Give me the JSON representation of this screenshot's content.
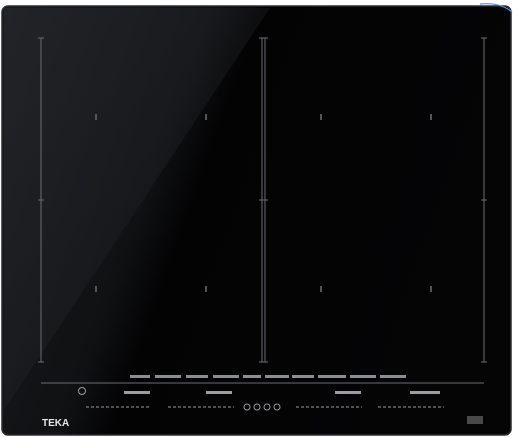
{
  "brand": "TEKA"
}
